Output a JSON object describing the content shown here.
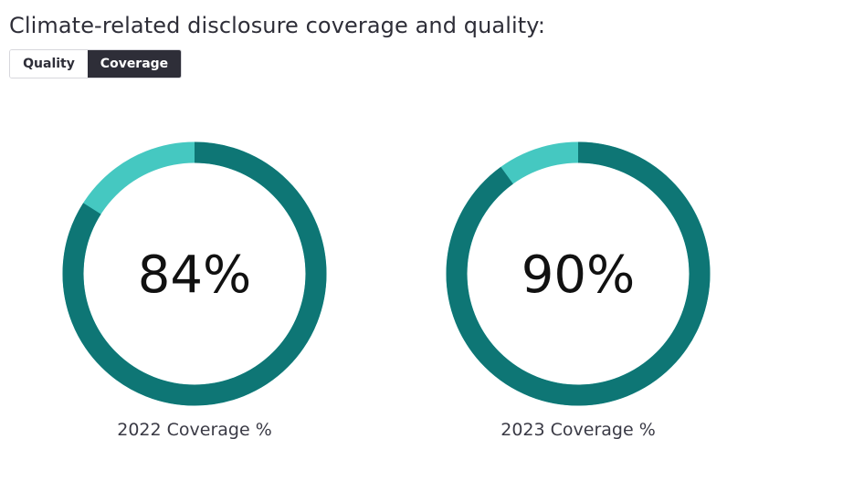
{
  "header": {
    "title": "Climate-related disclosure coverage and quality:"
  },
  "toggle": {
    "options": [
      {
        "label": "Quality",
        "selected": false
      },
      {
        "label": "Coverage",
        "selected": true
      }
    ]
  },
  "colors": {
    "primary": "#0e7675",
    "accent": "#45c8c1",
    "toggle_active": "#2e2e38"
  },
  "chart_data": [
    {
      "type": "pie",
      "label": "2022 Coverage %",
      "value": 84,
      "center_text": "84%"
    },
    {
      "type": "pie",
      "label": "2023 Coverage %",
      "value": 90,
      "center_text": "90%"
    }
  ]
}
